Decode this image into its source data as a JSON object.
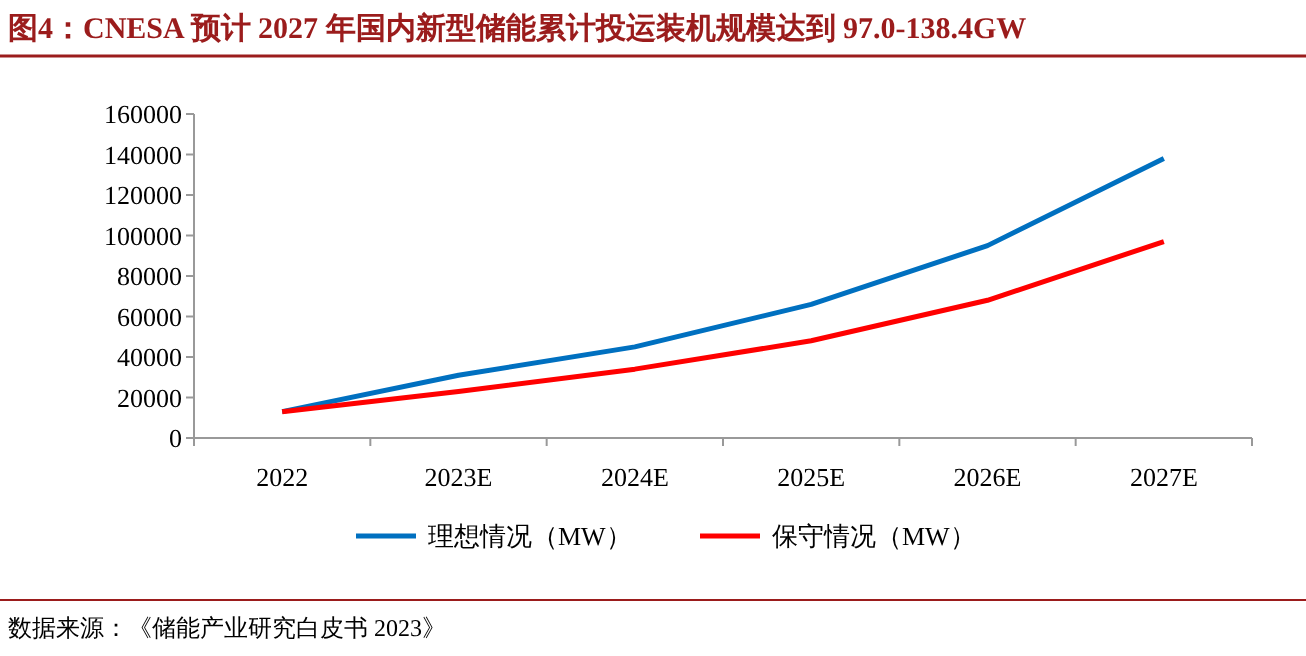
{
  "chart_data": {
    "type": "line",
    "title": "图4：CNESA 预计 2027 年国内新型储能累计投运装机规模达到 97.0-138.4GW",
    "categories": [
      "2022",
      "2023E",
      "2024E",
      "2025E",
      "2026E",
      "2027E"
    ],
    "series": [
      {
        "name": "理想情况（MW）",
        "color": "#0070c0",
        "values": [
          13000,
          31000,
          45000,
          66000,
          95000,
          138000
        ]
      },
      {
        "name": "保守情况（MW）",
        "color": "#ff0000",
        "values": [
          13000,
          23000,
          34000,
          48000,
          68000,
          97000
        ]
      }
    ],
    "ylim": [
      0,
      160000
    ],
    "yticks": [
      0,
      20000,
      40000,
      60000,
      80000,
      100000,
      120000,
      140000,
      160000
    ],
    "legend": "bottom",
    "marker": "none",
    "line_style": "solid",
    "grid": false,
    "annotations": [
      "数据来源：《储能产业研究白皮书 2023》"
    ]
  }
}
